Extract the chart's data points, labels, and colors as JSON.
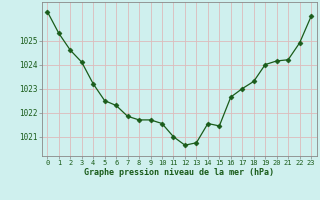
{
  "x": [
    0,
    1,
    2,
    3,
    4,
    5,
    6,
    7,
    8,
    9,
    10,
    11,
    12,
    13,
    14,
    15,
    16,
    17,
    18,
    19,
    20,
    21,
    22,
    23
  ],
  "y": [
    1026.2,
    1025.3,
    1024.6,
    1024.1,
    1023.2,
    1022.5,
    1022.3,
    1021.85,
    1021.7,
    1021.7,
    1021.55,
    1021.0,
    1020.65,
    1020.75,
    1021.55,
    1021.45,
    1022.65,
    1023.0,
    1023.3,
    1024.0,
    1024.15,
    1024.2,
    1024.9,
    1026.0
  ],
  "line_color": "#1a5c1a",
  "marker": "D",
  "marker_size": 2.5,
  "bg_color": "#cff0ee",
  "grid_color": "#ddbbbb",
  "xlabel": "Graphe pression niveau de la mer (hPa)",
  "xlabel_color": "#1a5c1a",
  "tick_color": "#1a5c1a",
  "axis_color": "#888888",
  "ylim": [
    1020.2,
    1026.6
  ],
  "yticks": [
    1021,
    1022,
    1023,
    1024,
    1025
  ],
  "xticks": [
    0,
    1,
    2,
    3,
    4,
    5,
    6,
    7,
    8,
    9,
    10,
    11,
    12,
    13,
    14,
    15,
    16,
    17,
    18,
    19,
    20,
    21,
    22,
    23
  ]
}
